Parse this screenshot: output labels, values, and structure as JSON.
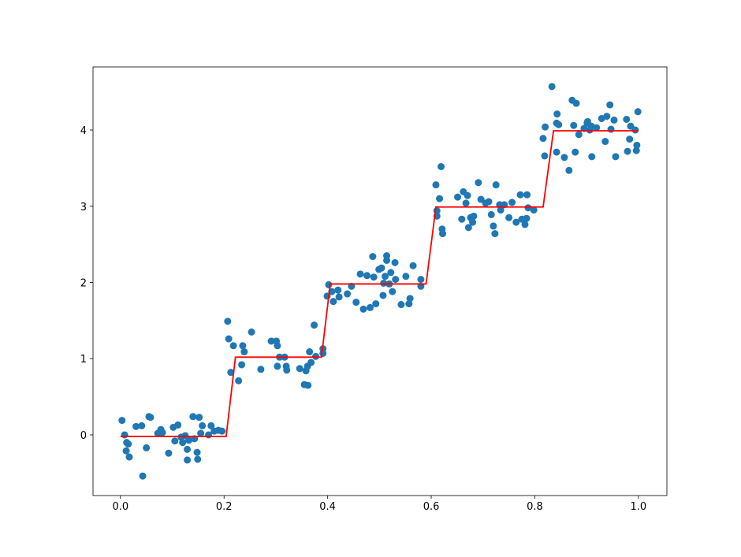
{
  "chart_data": {
    "type": "scatter",
    "xlim": [
      -0.053,
      1.055
    ],
    "ylim": [
      -0.796,
      4.827
    ],
    "xticks": [
      {
        "value": 0.0,
        "label": "0.0"
      },
      0.2,
      0.4,
      0.6,
      0.8,
      {
        "value": 1.0,
        "label": "1.0"
      }
    ],
    "yticks": [
      0,
      1,
      2,
      3,
      4
    ],
    "series": [
      {
        "type": "scatter",
        "color": "#1f77b4",
        "x": [
          0.003,
          0.008,
          0.012,
          0.015,
          0.011,
          0.017,
          0.03,
          0.041,
          0.043,
          0.05,
          0.055,
          0.058,
          0.072,
          0.078,
          0.081,
          0.093,
          0.102,
          0.105,
          0.111,
          0.117,
          0.12,
          0.125,
          0.129,
          0.129,
          0.132,
          0.14,
          0.143,
          0.148,
          0.149,
          0.152,
          0.158,
          0.155,
          0.17,
          0.175,
          0.181,
          0.189,
          0.196,
          0.207,
          0.209,
          0.213,
          0.218,
          0.228,
          0.234,
          0.236,
          0.239,
          0.253,
          0.271,
          0.291,
          0.301,
          0.303,
          0.303,
          0.307,
          0.317,
          0.32,
          0.321,
          0.346,
          0.355,
          0.362,
          0.358,
          0.361,
          0.365,
          0.368,
          0.374,
          0.377,
          0.391,
          0.391,
          0.399,
          0.402,
          0.408,
          0.411,
          0.42,
          0.422,
          0.438,
          0.446,
          0.455,
          0.463,
          0.469,
          0.476,
          0.482,
          0.489,
          0.487,
          0.493,
          0.499,
          0.504,
          0.507,
          0.508,
          0.511,
          0.514,
          0.514,
          0.522,
          0.519,
          0.525,
          0.53,
          0.531,
          0.542,
          0.551,
          0.557,
          0.559,
          0.565,
          0.58,
          0.58,
          0.609,
          0.611,
          0.611,
          0.616,
          0.619,
          0.621,
          0.622,
          0.651,
          0.659,
          0.662,
          0.667,
          0.67,
          0.672,
          0.676,
          0.682,
          0.68,
          0.691,
          0.696,
          0.705,
          0.711,
          0.716,
          0.72,
          0.723,
          0.725,
          0.732,
          0.734,
          0.741,
          0.75,
          0.756,
          0.764,
          0.772,
          0.775,
          0.781,
          0.784,
          0.785,
          0.787,
          0.798,
          0.816,
          0.819,
          0.82,
          0.833,
          0.842,
          0.843,
          0.842,
          0.846,
          0.857,
          0.866,
          0.872,
          0.875,
          0.878,
          0.88,
          0.885,
          0.895,
          0.901,
          0.902,
          0.906,
          0.909,
          0.91,
          0.919,
          0.929,
          0.936,
          0.939,
          0.945,
          0.947,
          0.956,
          0.953,
          0.977,
          0.979,
          0.983,
          0.985,
          0.994,
          0.996,
          0.997,
          0.999
        ],
        "values": [
          0.19,
          0.0,
          -0.1,
          -0.12,
          -0.21,
          -0.29,
          0.11,
          0.12,
          -0.54,
          -0.17,
          0.24,
          0.23,
          0.02,
          0.07,
          0.03,
          -0.24,
          0.1,
          -0.08,
          0.13,
          -0.03,
          -0.1,
          -0.01,
          -0.19,
          -0.33,
          -0.07,
          0.24,
          -0.05,
          -0.23,
          -0.32,
          0.23,
          0.12,
          0.02,
          0.0,
          0.12,
          0.05,
          0.06,
          0.05,
          1.49,
          1.26,
          0.82,
          1.17,
          0.71,
          0.92,
          1.17,
          1.09,
          1.35,
          0.86,
          1.23,
          1.23,
          1.17,
          0.9,
          1.02,
          1.02,
          0.9,
          0.85,
          0.87,
          0.66,
          0.65,
          0.84,
          0.9,
          1.09,
          0.95,
          1.44,
          1.03,
          1.13,
          1.07,
          1.82,
          1.97,
          1.88,
          1.75,
          1.9,
          1.81,
          1.85,
          1.95,
          1.74,
          2.11,
          1.65,
          2.09,
          1.67,
          2.07,
          2.34,
          1.72,
          2.17,
          2.19,
          1.83,
          1.99,
          2.08,
          2.29,
          2.35,
          2.13,
          1.98,
          1.88,
          2.26,
          2.04,
          1.71,
          2.08,
          1.72,
          1.79,
          2.22,
          2.04,
          1.95,
          3.28,
          2.94,
          2.87,
          3.1,
          3.52,
          2.7,
          2.64,
          3.12,
          2.83,
          3.19,
          3.04,
          3.14,
          2.72,
          2.85,
          2.87,
          2.79,
          3.31,
          3.09,
          3.04,
          3.06,
          2.89,
          2.74,
          2.64,
          3.28,
          3.02,
          2.95,
          3.02,
          2.85,
          3.05,
          2.79,
          3.15,
          2.83,
          2.76,
          2.84,
          3.15,
          2.98,
          2.95,
          3.89,
          3.66,
          4.04,
          4.57,
          3.71,
          4.21,
          4.09,
          4.07,
          3.64,
          3.47,
          4.39,
          4.06,
          3.71,
          4.35,
          3.94,
          4.02,
          4.09,
          4.11,
          4.0,
          4.05,
          3.65,
          4.03,
          4.15,
          3.85,
          4.18,
          4.33,
          4.01,
          3.65,
          4.13,
          4.14,
          3.72,
          3.88,
          4.05,
          4.0,
          3.73,
          3.8,
          4.24
        ]
      },
      {
        "type": "line",
        "color": "#ff0000",
        "x": [
          0.0,
          0.204,
          0.222,
          0.388,
          0.405,
          0.59,
          0.609,
          0.816,
          0.836,
          1.0
        ],
        "values": [
          -0.02,
          -0.02,
          1.02,
          1.02,
          1.98,
          1.98,
          2.99,
          2.99,
          3.99,
          3.99
        ]
      }
    ]
  }
}
